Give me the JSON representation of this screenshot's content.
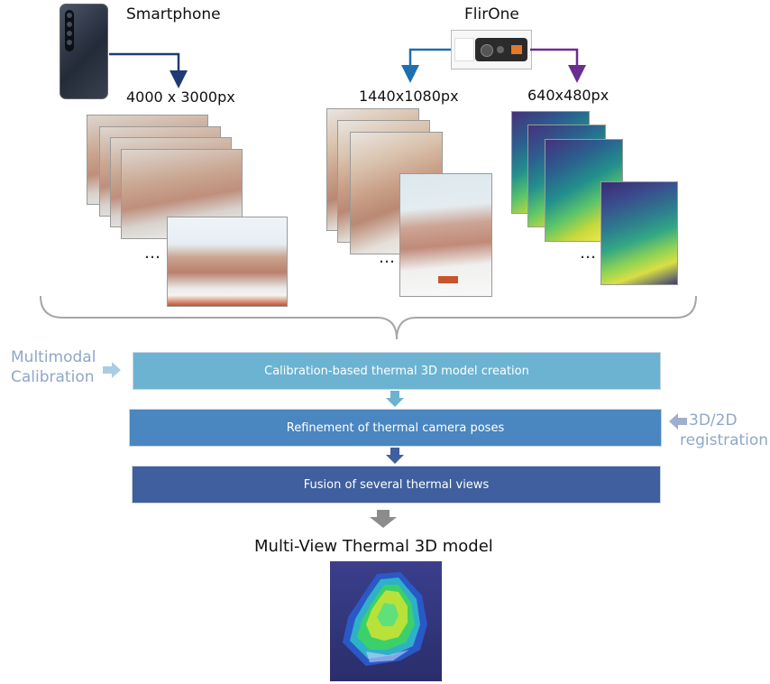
{
  "sources": {
    "smartphone": {
      "label": "Smartphone",
      "resolution": "4000 x 3000px",
      "icon": "smartphone-icon"
    },
    "flirone": {
      "label": "FlirOne",
      "rgb_resolution": "1440x1080px",
      "thermal_resolution": "640x480px",
      "icon": "thermal-camera-icon"
    }
  },
  "ellipsis": "…",
  "side_labels": {
    "left": {
      "line1": "Multimodal",
      "line2": "Calibration"
    },
    "right": {
      "line1": "3D/2D",
      "line2": "registration"
    }
  },
  "pipeline": {
    "steps": [
      {
        "label": "Calibration-based thermal 3D model creation",
        "color": "#6bb3d1"
      },
      {
        "label": "Refinement of thermal camera poses",
        "color": "#4a86bf"
      },
      {
        "label": "Fusion of several thermal views",
        "color": "#3f5f9e"
      }
    ],
    "output_title": "Multi-View Thermal 3D model"
  },
  "colors": {
    "arrow_smartphone": "#1f3a73",
    "arrow_rgb": "#1f6fb0",
    "arrow_thermal": "#6b2d8f",
    "side_text": "#8fa7c8"
  }
}
